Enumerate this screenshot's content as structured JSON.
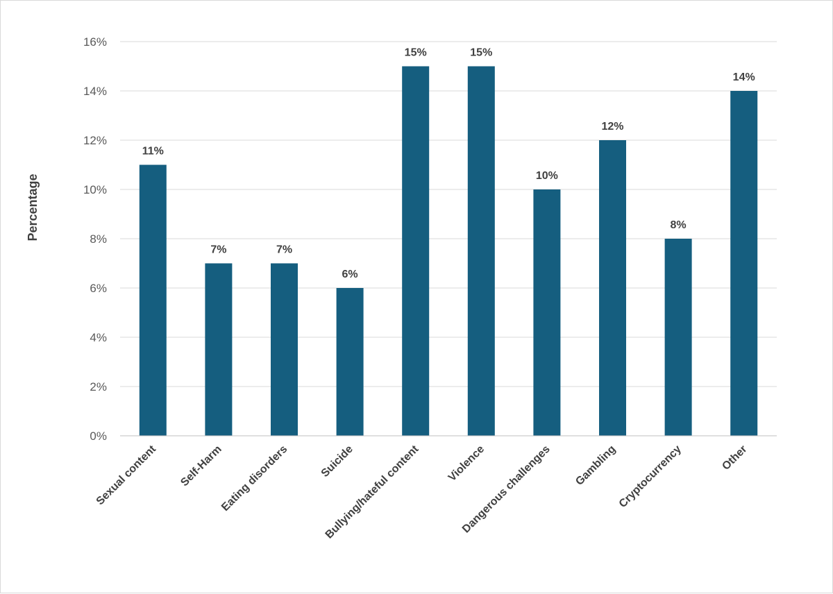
{
  "chart_data": {
    "type": "bar",
    "categories": [
      "Sexual content",
      "Self-Harm",
      "Eating disorders",
      "Suicide",
      "Bullying/hateful content",
      "Violence",
      "Dangerous challenges",
      "Gambling",
      "Cryptocurrency",
      "Other"
    ],
    "values": [
      11,
      7,
      7,
      6,
      15,
      15,
      10,
      12,
      8,
      14
    ],
    "data_labels": [
      "11%",
      "7%",
      "7%",
      "6%",
      "15%",
      "15%",
      "10%",
      "12%",
      "8%",
      "14%"
    ],
    "ylabel": "Percentage",
    "xlabel": "",
    "ylim": [
      0,
      16
    ],
    "y_ticks": [
      "0%",
      "2%",
      "4%",
      "6%",
      "8%",
      "10%",
      "12%",
      "14%",
      "16%"
    ],
    "grid": true,
    "legend": "none",
    "bar_color": "#155e7f"
  }
}
